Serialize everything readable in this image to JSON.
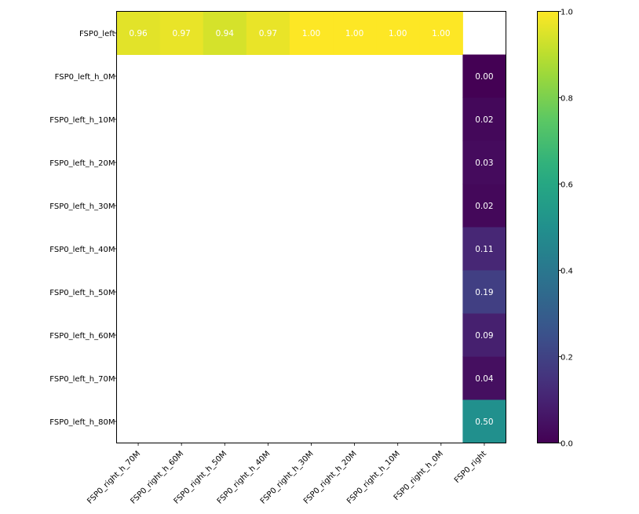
{
  "chart_data": {
    "type": "heatmap",
    "title": "",
    "xlabel": "",
    "ylabel": "",
    "x_categories": [
      "FSP0_right_h_70M",
      "FSP0_right_h_60M",
      "FSP0_right_h_50M",
      "FSP0_right_h_40M",
      "FSP0_right_h_30M",
      "FSP0_right_h_20M",
      "FSP0_right_h_10M",
      "FSP0_right_h_0M",
      "FSP0_right"
    ],
    "y_categories": [
      "FSP0_left",
      "FSP0_left_h_0M",
      "FSP0_left_h_10M",
      "FSP0_left_h_20M",
      "FSP0_left_h_30M",
      "FSP0_left_h_40M",
      "FSP0_left_h_50M",
      "FSP0_left_h_60M",
      "FSP0_left_h_70M",
      "FSP0_left_h_80M"
    ],
    "values": [
      [
        0.96,
        0.97,
        0.94,
        0.97,
        1.0,
        1.0,
        1.0,
        1.0,
        null
      ],
      [
        null,
        null,
        null,
        null,
        null,
        null,
        null,
        null,
        0.0
      ],
      [
        null,
        null,
        null,
        null,
        null,
        null,
        null,
        null,
        0.02
      ],
      [
        null,
        null,
        null,
        null,
        null,
        null,
        null,
        null,
        0.03
      ],
      [
        null,
        null,
        null,
        null,
        null,
        null,
        null,
        null,
        0.02
      ],
      [
        null,
        null,
        null,
        null,
        null,
        null,
        null,
        null,
        0.11
      ],
      [
        null,
        null,
        null,
        null,
        null,
        null,
        null,
        null,
        0.19
      ],
      [
        null,
        null,
        null,
        null,
        null,
        null,
        null,
        null,
        0.09
      ],
      [
        null,
        null,
        null,
        null,
        null,
        null,
        null,
        null,
        0.04
      ],
      [
        null,
        null,
        null,
        null,
        null,
        null,
        null,
        null,
        0.5
      ]
    ],
    "colormap": "viridis",
    "value_format_decimals": 2,
    "colorbar": {
      "range": [
        0.0,
        1.0
      ],
      "ticks": [
        0.0,
        0.2,
        0.4,
        0.6,
        0.8,
        1.0
      ],
      "tick_labels": [
        "0.0",
        "0.2",
        "0.4",
        "0.6",
        "0.8",
        "1.0"
      ]
    },
    "grid": false
  }
}
